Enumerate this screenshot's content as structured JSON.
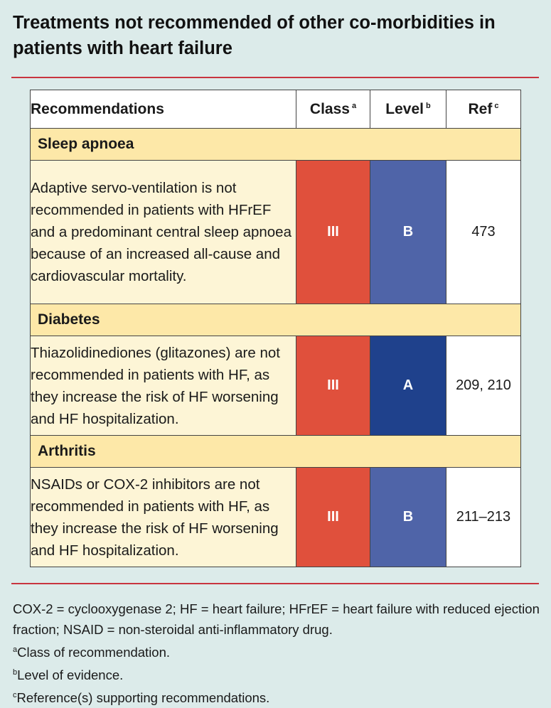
{
  "title": "Treatments not recommended of other co-morbidities in patients with heart failure",
  "header": {
    "recommendations": "Recommendations",
    "class": "Class",
    "class_sup": "a",
    "level": "Level",
    "level_sup": "b",
    "ref": "Ref",
    "ref_sup": "c"
  },
  "sections": [
    {
      "name": "Sleep apnoea",
      "text": "Adaptive servo-ventilation is not recommended in patients with HFrEF and a predominant central sleep apnoea because of an increased all-cause and cardiovascular mortality.",
      "class": "III",
      "level": "B",
      "ref": "473"
    },
    {
      "name": "Diabetes",
      "text": "Thiazolidinediones (glitazones) are not recommended in patients with HF, as they increase the risk of HF worsening and HF hospitalization.",
      "class": "III",
      "level": "A",
      "ref": "209, 210"
    },
    {
      "name": "Arthritis",
      "text": "NSAIDs or COX-2 inhibitors are not recommended in patients with HF, as they increase the risk of HF worsening and HF hospitalization.",
      "class": "III",
      "level": "B",
      "ref": "211–213"
    }
  ],
  "footer": {
    "abbreviations": "COX-2 = cyclooxygenase 2; HF = heart failure; HFrEF = heart failure with reduced ejection fraction; NSAID = non-steroidal anti-inflammatory drug.",
    "note_a_sup": "a",
    "note_a": "Class of recommendation.",
    "note_b_sup": "b",
    "note_b": "Level of evidence.",
    "note_c_sup": "c",
    "note_c": "Reference(s) supporting recommendations."
  },
  "colors": {
    "class_red": "#e0503c",
    "level_b_blue": "#4f64a8",
    "level_a_blue": "#1f418c",
    "section_yellow": "#fde8a8",
    "rule_red": "#c8343f"
  }
}
